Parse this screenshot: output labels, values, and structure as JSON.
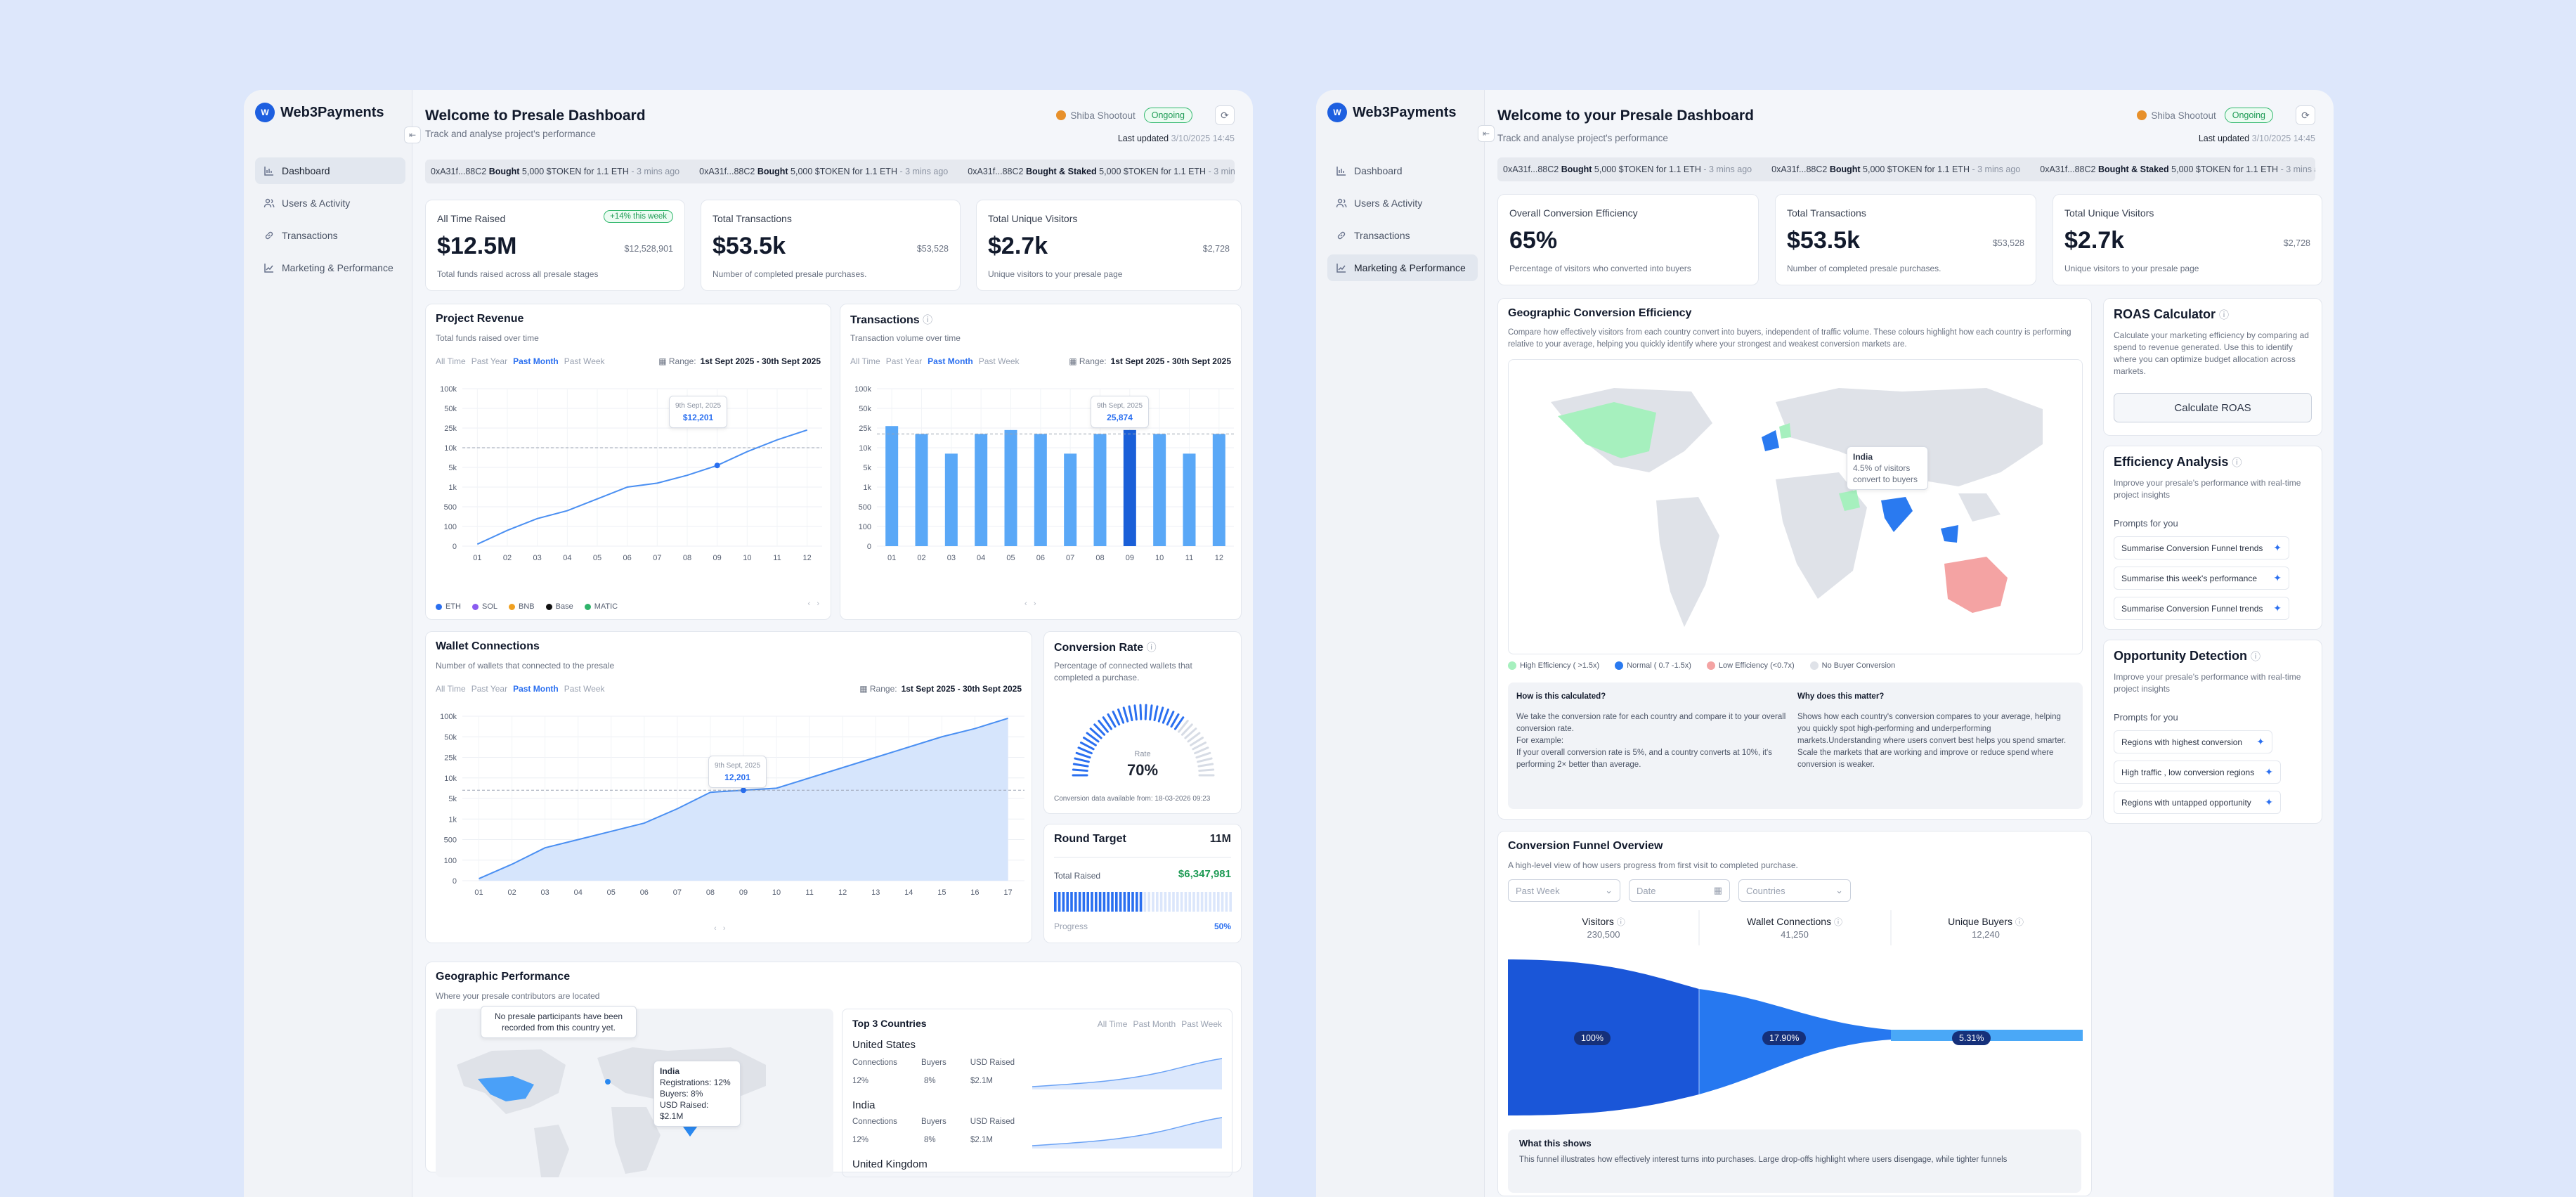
{
  "brand": {
    "name": "Web3Payments",
    "mark": "W"
  },
  "nav": [
    {
      "label": "Dashboard",
      "icon": "bar-chart-icon"
    },
    {
      "label": "Users & Activity",
      "icon": "users-icon"
    },
    {
      "label": "Transactions",
      "icon": "link-icon"
    },
    {
      "label": "Marketing & Performance",
      "icon": "trend-icon"
    }
  ],
  "project": {
    "name": "Shiba Shootout",
    "status": "Ongoing",
    "updated_label": "Last updated",
    "updated_value": "3/10/2025 14:45"
  },
  "ticker": [
    {
      "addr": "0xA31f...88C2",
      "action": "Bought",
      "rest": "5,000 $TOKEN for 1.1 ETH",
      "ago": "- 3 mins ago"
    },
    {
      "addr": "0xA31f...88C2",
      "action": "Bought",
      "rest": "5,000 $TOKEN for 1.1 ETH",
      "ago": "- 3 mins ago"
    },
    {
      "addr": "0xA31f...88C2",
      "action": "Bought & Staked",
      "rest": "5,000 $TOKEN for 1.1 ETH",
      "ago": "- 3 mins ago"
    }
  ],
  "d1": {
    "title": "Welcome to Presale Dashboard",
    "subtitle": "Track and analyse project's performance",
    "stats": [
      {
        "label": "All Time Raised",
        "value": "$12.5M",
        "small": "$12,528,901",
        "sub": "Total funds raised across all presale stages",
        "badge": "+14% this week"
      },
      {
        "label": "Total Transactions",
        "value": "$53.5k",
        "small": "$53,528",
        "sub": "Number of completed presale purchases."
      },
      {
        "label": "Total Unique Visitors",
        "value": "$2.7k",
        "small": "$2,728",
        "sub": "Unique visitors to your presale page"
      }
    ],
    "filters": [
      "All Time",
      "Past Year",
      "Past Month",
      "Past Week"
    ],
    "range_label": "Range:",
    "range_value": "1st Sept 2025 - 30th Sept 2025",
    "revenue": {
      "title": "Project Revenue",
      "subtitle": "Total funds raised over time",
      "tooltip_date": "9th Sept, 2025",
      "tooltip_value": "$12,201"
    },
    "transactions": {
      "title": "Transactions",
      "subtitle": "Transaction volume over time",
      "tooltip_date": "9th Sept, 2025",
      "tooltip_value": "25,874"
    },
    "legend": [
      "ETH",
      "SOL",
      "BNB",
      "Base",
      "MATIC"
    ],
    "wallet": {
      "title": "Wallet Connections",
      "subtitle": "Number of wallets that connected to the presale",
      "tooltip_date": "9th Sept, 2025",
      "tooltip_value": "12,201"
    },
    "conversion": {
      "title": "Conversion Rate",
      "subtitle": "Percentage of connected wallets that completed a purchase.",
      "rate_label": "Rate",
      "rate_value": "70%",
      "note": "Conversion data available from: 18-03-2026 09:23"
    },
    "round": {
      "title": "Round Target",
      "target": "11M",
      "raised_label": "Total Raised",
      "raised_value": "$6,347,981",
      "progress_label": "Progress",
      "progress_value": "50%"
    },
    "geo": {
      "title": "Geographic Performance",
      "subtitle": "Where your presale contributors are located",
      "empty_tip": "No presale participants have been recorded from this country yet.",
      "india_tip": {
        "name": "India",
        "l1": "Registrations: 12%",
        "l2": "Buyers: 8%",
        "l3": "USD Raised: $2.1M"
      }
    },
    "top3": {
      "title": "Top 3 Countries",
      "tabs": [
        "All Time",
        "Past Month",
        "Past Week"
      ],
      "cols": [
        "Connections",
        "Buyers",
        "USD Raised"
      ],
      "rows": [
        {
          "name": "United States",
          "c": "12%",
          "b": "8%",
          "u": "$2.1M"
        },
        {
          "name": "India",
          "c": "12%",
          "b": "8%",
          "u": "$2.1M"
        },
        {
          "name": "United Kingdom"
        }
      ]
    }
  },
  "d2": {
    "title": "Welcome to your Presale Dashboard",
    "subtitle": "Track and analyse project's performance",
    "stats": [
      {
        "label": "Overall Conversion Efficiency",
        "value": "65%",
        "sub": "Percentage of visitors who converted into buyers"
      },
      {
        "label": "Total Transactions",
        "value": "$53.5k",
        "small": "$53,528",
        "sub": "Number of completed presale purchases."
      },
      {
        "label": "Total Unique Visitors",
        "value": "$2.7k",
        "small": "$2,728",
        "sub": "Unique visitors to your presale page"
      }
    ],
    "geo": {
      "title": "Geographic Conversion Efficiency",
      "subtitle": "Compare how effectively visitors from each country convert into buyers, independent of traffic volume. These colours highlight how each country is performing relative to your average, helping you quickly identify where your strongest and weakest conversion markets are.",
      "tip": {
        "name": "India",
        "l1": "4.5% of visitors",
        "l2": "convert to buyers"
      },
      "legend": [
        "High Efficiency ( >1.5x)",
        "Normal ( 0.7 -1.5x)",
        "Low Efficiency (<0.7x)",
        "No Buyer Conversion"
      ],
      "how_title": "How is this calculated?",
      "how_text": "We take the conversion rate for each country and compare it to your overall conversion rate.",
      "how_ex": "For example:",
      "how_ex2": "If your overall conversion rate is 5%, and a country converts at 10%, it's performing 2× better than average.",
      "why_title": "Why does this matter?",
      "why_text": "Shows how each country's conversion compares to your average, helping you quickly spot high-performing and underperforming markets.Understanding where users convert best helps you spend smarter. Scale the markets that are working and improve or reduce spend where conversion is weaker."
    },
    "roas": {
      "title": "ROAS Calculator",
      "desc": "Calculate your marketing efficiency by comparing ad spend to revenue generated. Use this to identify where you can optimize budget allocation across markets.",
      "button": "Calculate ROAS"
    },
    "eff": {
      "title": "Efficiency Analysis",
      "desc": "Improve your presale's performance with real-time project insights",
      "prompts_label": "Prompts for you",
      "prompts": [
        "Summarise Conversion Funnel trends",
        "Summarise this week's performance",
        "Summarise Conversion Funnel trends"
      ]
    },
    "opp": {
      "title": "Opportunity Detection",
      "desc": "Improve your presale's performance with real-time project insights",
      "prompts_label": "Prompts for you",
      "prompts": [
        "Regions with highest conversion",
        "High traffic , low conversion regions",
        "Regions with untapped opportunity"
      ]
    },
    "funnel": {
      "title": "Conversion Funnel Overview",
      "subtitle": "A high-level view of how users progress from first visit to completed purchase.",
      "selects": [
        "Past Week",
        "Date",
        "Countries"
      ],
      "stages": [
        {
          "name": "Visitors",
          "value": "230,500",
          "pct": "100%"
        },
        {
          "name": "Wallet Connections",
          "value": "41,250",
          "pct": "17.90%"
        },
        {
          "name": "Unique Buyers",
          "value": "12,240",
          "pct": "5.31%"
        }
      ],
      "what_title": "What this shows",
      "what_text": "This funnel illustrates how effectively interest turns into purchases. Large drop-offs highlight where users disengage, while tighter funnels"
    }
  },
  "chart_data": [
    {
      "type": "line",
      "title": "Project Revenue",
      "categories": [
        "01",
        "02",
        "03",
        "04",
        "05",
        "06",
        "07",
        "08",
        "09",
        "10",
        "11",
        "12"
      ],
      "yticks": [
        "0",
        "100",
        "500",
        "1k",
        "5k",
        "10k",
        "25k",
        "50k",
        "100k"
      ],
      "values": [
        0.1,
        0.8,
        1.4,
        1.8,
        2.4,
        3.0,
        3.2,
        3.6,
        4.1,
        4.8,
        5.4,
        5.9
      ]
    },
    {
      "type": "bar",
      "title": "Transactions",
      "categories": [
        "01",
        "02",
        "03",
        "04",
        "05",
        "06",
        "07",
        "08",
        "09",
        "10",
        "11",
        "12"
      ],
      "yticks": [
        "0",
        "100",
        "500",
        "1k",
        "5k",
        "10k",
        "25k",
        "50k",
        "100k"
      ],
      "values": [
        6.1,
        5.7,
        4.7,
        5.7,
        5.9,
        5.7,
        4.7,
        5.7,
        5.9,
        5.7,
        4.7,
        5.7
      ]
    },
    {
      "type": "area",
      "title": "Wallet Connections",
      "categories": [
        "01",
        "02",
        "03",
        "04",
        "05",
        "06",
        "07",
        "08",
        "09",
        "10",
        "11",
        "12",
        "13",
        "14",
        "15",
        "16",
        "17"
      ],
      "yticks": [
        "0",
        "100",
        "500",
        "1k",
        "5k",
        "10k",
        "25k",
        "50k",
        "100k"
      ],
      "values": [
        0.1,
        0.8,
        1.6,
        2.0,
        2.4,
        2.8,
        3.5,
        4.3,
        4.4,
        4.5,
        5.0,
        5.5,
        6.0,
        6.5,
        7.0,
        7.4,
        7.9
      ]
    }
  ]
}
